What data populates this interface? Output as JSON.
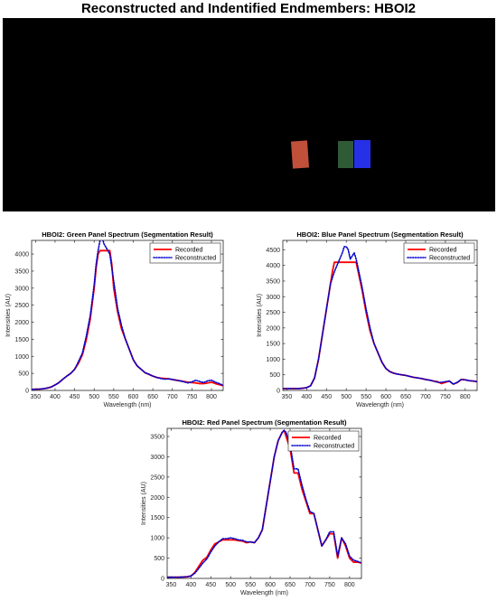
{
  "figure": {
    "title": "Reconstructed and Indentified Endmembers: HBOI2"
  },
  "scene": {
    "background": "#000000",
    "panels": [
      {
        "name": "red-panel",
        "color": "#c0503a"
      },
      {
        "name": "green-panel",
        "color": "#2f5a36"
      },
      {
        "name": "blue-panel",
        "color": "#2630e6"
      }
    ]
  },
  "colors": {
    "recorded": "#ff0000",
    "reconstructed": "#0000cc"
  },
  "chart_data": [
    {
      "type": "line",
      "title": "HBOI2: Green Panel Spectrum (Segmentation Result)",
      "xlabel": "Wavelength (nm)",
      "ylabel": "Intensities (AU)",
      "xlim": [
        340,
        830
      ],
      "ylim": [
        0,
        4400
      ],
      "xticks": [
        350,
        400,
        450,
        500,
        550,
        600,
        650,
        700,
        750,
        800
      ],
      "yticks": [
        0,
        500,
        1000,
        1500,
        2000,
        2500,
        3000,
        3500,
        4000
      ],
      "legend": "top-right",
      "grid": false,
      "series": [
        {
          "name": "Recorded",
          "style": "solid",
          "x": [
            340,
            350,
            360,
            370,
            380,
            390,
            400,
            410,
            420,
            430,
            440,
            450,
            460,
            470,
            480,
            490,
            500,
            505,
            510,
            515,
            520,
            530,
            540,
            545,
            550,
            560,
            570,
            580,
            590,
            600,
            610,
            620,
            630,
            640,
            650,
            660,
            670,
            680,
            690,
            700,
            710,
            720,
            730,
            740,
            750,
            760,
            770,
            780,
            790,
            800,
            810,
            820,
            830
          ],
          "y": [
            30,
            35,
            40,
            50,
            70,
            100,
            160,
            230,
            330,
            420,
            500,
            620,
            800,
            1050,
            1500,
            2100,
            3000,
            3600,
            4000,
            4100,
            4100,
            4100,
            4100,
            3700,
            3000,
            2300,
            1800,
            1500,
            1200,
            900,
            720,
            620,
            520,
            470,
            420,
            380,
            360,
            350,
            340,
            320,
            300,
            280,
            260,
            240,
            230,
            220,
            200,
            200,
            220,
            240,
            200,
            170,
            140
          ]
        },
        {
          "name": "Reconstructed",
          "style": "dotted",
          "x": [
            340,
            350,
            360,
            370,
            380,
            390,
            400,
            410,
            420,
            430,
            440,
            450,
            460,
            470,
            480,
            490,
            500,
            505,
            510,
            515,
            520,
            525,
            530,
            540,
            550,
            560,
            570,
            580,
            590,
            600,
            610,
            620,
            630,
            640,
            650,
            660,
            670,
            680,
            690,
            700,
            710,
            720,
            730,
            740,
            750,
            760,
            770,
            780,
            790,
            800,
            810,
            820,
            830
          ],
          "y": [
            30,
            35,
            40,
            50,
            70,
            100,
            160,
            230,
            330,
            420,
            500,
            620,
            850,
            1100,
            1600,
            2200,
            3100,
            3700,
            4100,
            4400,
            4500,
            4300,
            4200,
            4000,
            3200,
            2400,
            1900,
            1500,
            1200,
            900,
            720,
            620,
            520,
            480,
            420,
            380,
            350,
            330,
            340,
            320,
            300,
            280,
            250,
            220,
            250,
            300,
            260,
            230,
            280,
            300,
            240,
            200,
            150
          ]
        }
      ]
    },
    {
      "type": "line",
      "title": "HBOI2: Blue Panel Spectrum (Segmentation Result)",
      "xlabel": "Wavelength (nm)",
      "ylabel": "Intensities (AU)",
      "xlim": [
        340,
        830
      ],
      "ylim": [
        0,
        4800
      ],
      "xticks": [
        350,
        400,
        450,
        500,
        550,
        600,
        650,
        700,
        750,
        800
      ],
      "yticks": [
        0,
        500,
        1000,
        1500,
        2000,
        2500,
        3000,
        3500,
        4000,
        4500
      ],
      "legend": "top-right",
      "grid": false,
      "series": [
        {
          "name": "Recorded",
          "style": "solid",
          "x": [
            340,
            350,
            360,
            370,
            380,
            390,
            400,
            410,
            420,
            430,
            440,
            450,
            460,
            465,
            470,
            480,
            490,
            500,
            510,
            520,
            525,
            530,
            540,
            550,
            560,
            570,
            580,
            590,
            600,
            610,
            620,
            630,
            640,
            650,
            660,
            670,
            680,
            690,
            700,
            710,
            720,
            730,
            740,
            750,
            760,
            770,
            780,
            790,
            800,
            810,
            820,
            830
          ],
          "y": [
            60,
            60,
            60,
            60,
            60,
            70,
            90,
            150,
            400,
            1000,
            1800,
            2600,
            3400,
            3800,
            4100,
            4100,
            4100,
            4100,
            4100,
            4100,
            4100,
            3800,
            3200,
            2500,
            1900,
            1500,
            1200,
            900,
            700,
            600,
            550,
            520,
            500,
            480,
            450,
            420,
            400,
            380,
            350,
            330,
            300,
            280,
            220,
            260,
            300,
            200,
            250,
            350,
            340,
            310,
            300,
            280
          ]
        },
        {
          "name": "Reconstructed",
          "style": "dotted",
          "x": [
            340,
            350,
            360,
            370,
            380,
            390,
            400,
            410,
            420,
            430,
            440,
            450,
            460,
            465,
            470,
            480,
            490,
            495,
            500,
            505,
            510,
            520,
            525,
            530,
            540,
            550,
            560,
            570,
            580,
            590,
            600,
            610,
            620,
            630,
            640,
            650,
            660,
            670,
            680,
            690,
            700,
            710,
            720,
            730,
            740,
            750,
            760,
            770,
            780,
            790,
            800,
            810,
            820,
            830
          ],
          "y": [
            60,
            60,
            60,
            60,
            60,
            70,
            90,
            150,
            400,
            1000,
            1800,
            2600,
            3400,
            3600,
            3800,
            4100,
            4400,
            4600,
            4600,
            4500,
            4200,
            4400,
            4200,
            3900,
            3300,
            2600,
            2000,
            1500,
            1200,
            900,
            700,
            600,
            550,
            520,
            500,
            480,
            450,
            420,
            400,
            380,
            350,
            330,
            300,
            260,
            260,
            280,
            300,
            200,
            260,
            350,
            340,
            310,
            300,
            280
          ]
        }
      ]
    },
    {
      "type": "line",
      "title": "HBOI2: Red Panel Spectrum (Segmentation Result)",
      "xlabel": "Wavelength (nm)",
      "ylabel": "Intensities (AU)",
      "xlim": [
        340,
        830
      ],
      "ylim": [
        0,
        3700
      ],
      "xticks": [
        350,
        400,
        450,
        500,
        550,
        600,
        650,
        700,
        750,
        800
      ],
      "yticks": [
        0,
        500,
        1000,
        1500,
        2000,
        2500,
        3000,
        3500
      ],
      "legend": "top-right",
      "grid": false,
      "series": [
        {
          "name": "Recorded",
          "style": "solid",
          "x": [
            340,
            350,
            360,
            370,
            380,
            390,
            400,
            410,
            420,
            430,
            440,
            450,
            460,
            470,
            480,
            490,
            500,
            510,
            520,
            530,
            540,
            550,
            560,
            570,
            580,
            590,
            600,
            610,
            620,
            630,
            635,
            640,
            650,
            660,
            670,
            680,
            690,
            700,
            710,
            720,
            730,
            740,
            750,
            760,
            770,
            780,
            790,
            800,
            810,
            820,
            830
          ],
          "y": [
            30,
            30,
            30,
            30,
            35,
            40,
            60,
            150,
            300,
            450,
            520,
            700,
            850,
            900,
            950,
            950,
            950,
            950,
            930,
            920,
            880,
            900,
            880,
            1000,
            1200,
            1800,
            2400,
            3000,
            3400,
            3600,
            3650,
            3500,
            3200,
            2600,
            2600,
            2200,
            1900,
            1600,
            1600,
            1200,
            800,
            950,
            1100,
            1100,
            500,
            1000,
            800,
            500,
            400,
            400,
            380
          ]
        },
        {
          "name": "Reconstructed",
          "style": "dotted",
          "x": [
            340,
            350,
            360,
            370,
            380,
            390,
            400,
            410,
            420,
            430,
            440,
            450,
            460,
            470,
            480,
            490,
            500,
            510,
            520,
            530,
            540,
            550,
            560,
            570,
            580,
            590,
            600,
            610,
            620,
            630,
            635,
            640,
            650,
            660,
            670,
            680,
            690,
            700,
            710,
            720,
            730,
            740,
            750,
            760,
            770,
            780,
            790,
            800,
            810,
            820,
            830
          ],
          "y": [
            30,
            30,
            30,
            30,
            35,
            40,
            60,
            130,
            250,
            380,
            480,
            650,
            800,
            900,
            980,
            980,
            1000,
            980,
            950,
            940,
            900,
            900,
            880,
            1000,
            1200,
            1800,
            2400,
            3000,
            3400,
            3600,
            3650,
            3600,
            3300,
            2700,
            2700,
            2300,
            1950,
            1650,
            1600,
            1200,
            800,
            950,
            1150,
            1150,
            550,
            1000,
            850,
            550,
            450,
            420,
            380
          ]
        }
      ]
    }
  ]
}
